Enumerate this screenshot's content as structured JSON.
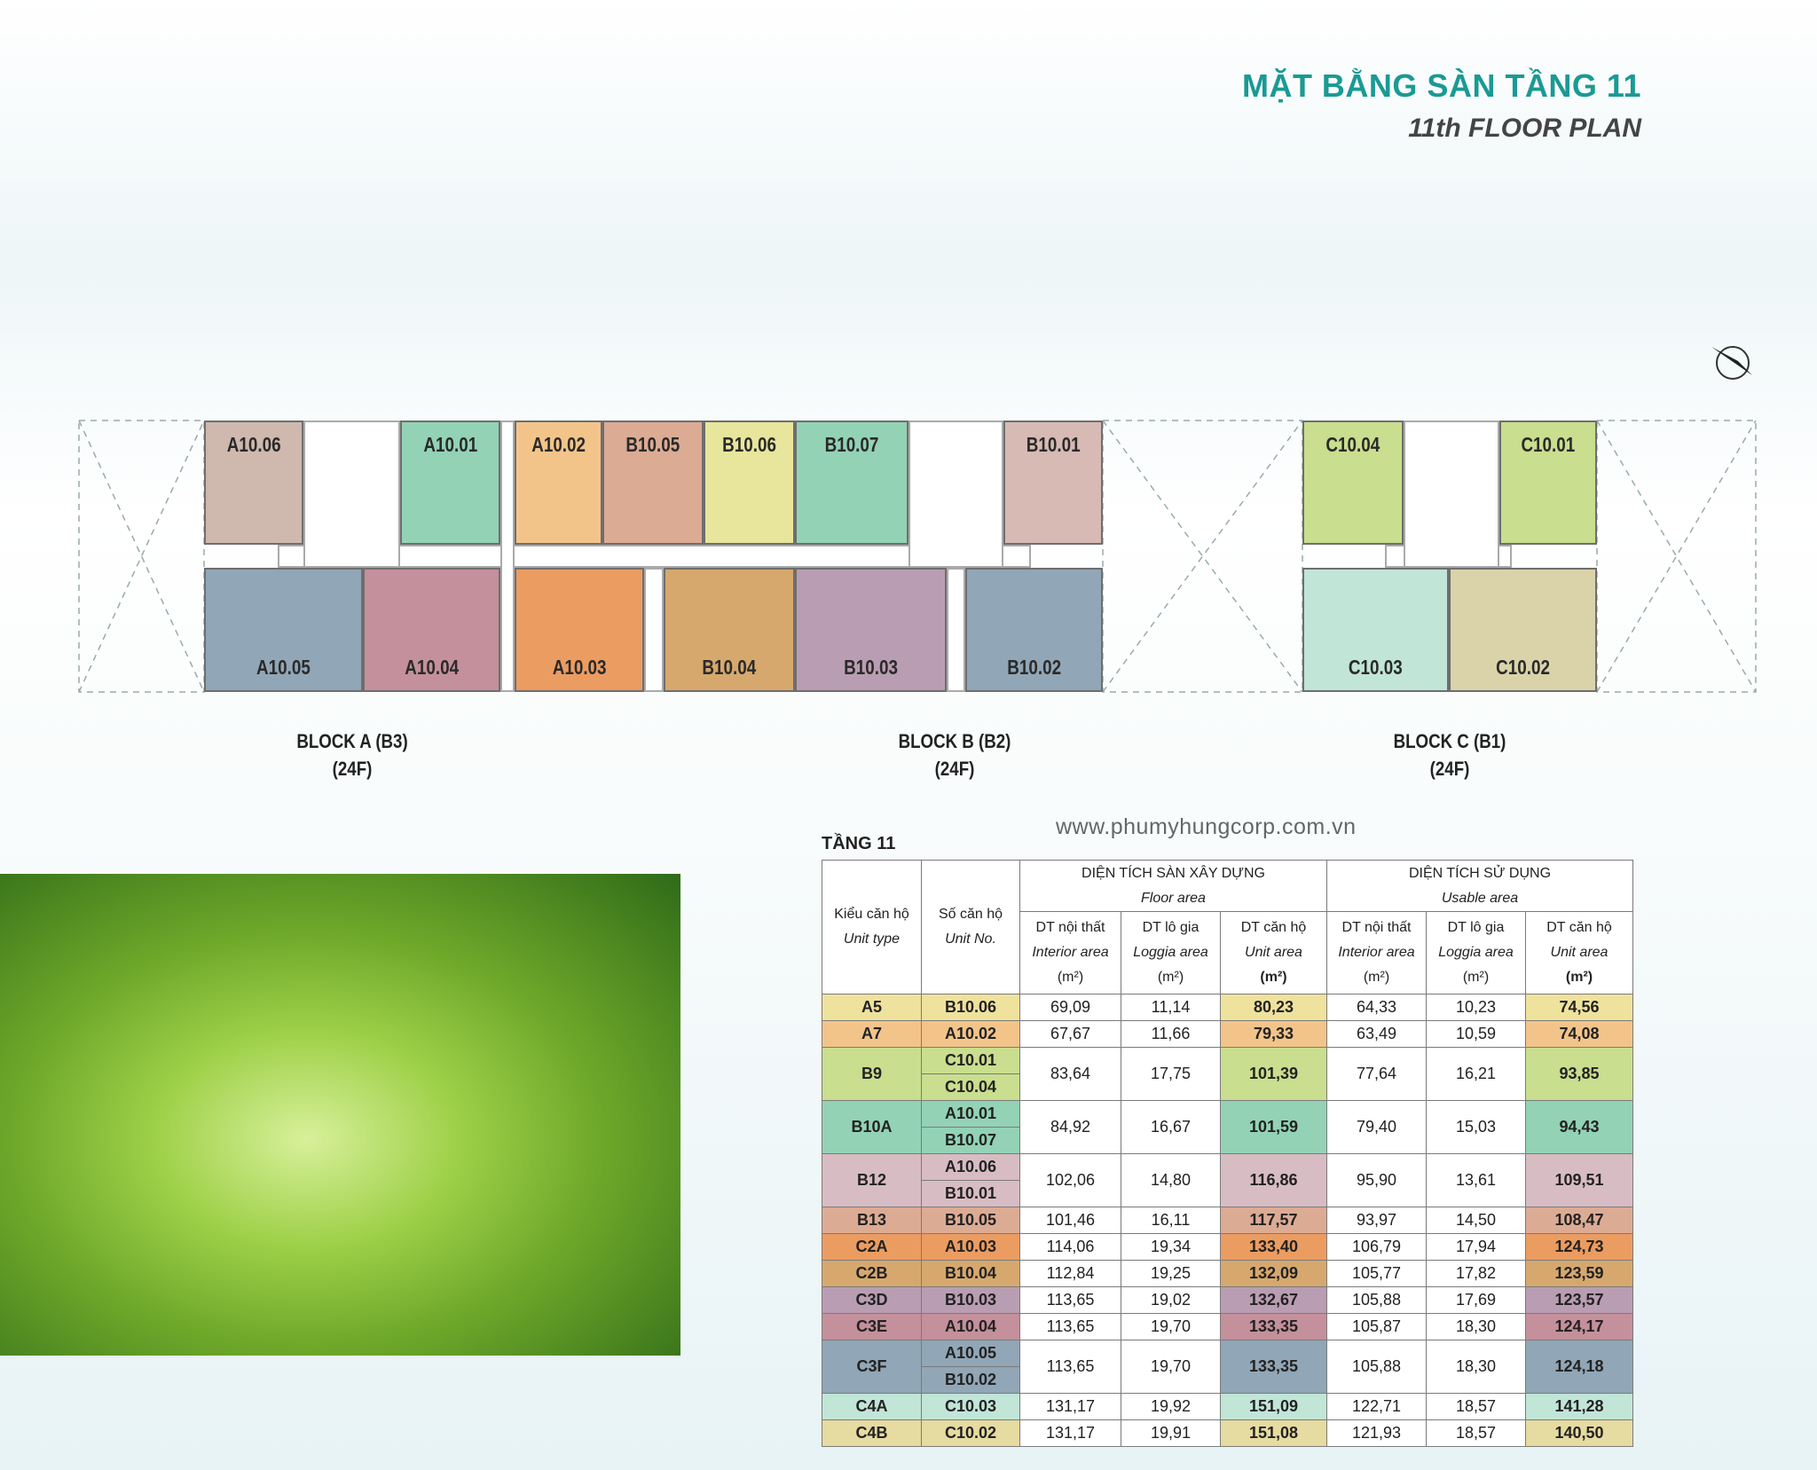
{
  "header": {
    "title": "MẶT BẰNG SÀN TẦNG 11",
    "subtitle": "11th FLOOR PLAN"
  },
  "plan": {
    "units": [
      {
        "label": "A10.06",
        "color": "#cfb8ae"
      },
      {
        "label": "A10.01",
        "color": "#93d2b5"
      },
      {
        "label": "A10.02",
        "color": "#f3c48a"
      },
      {
        "label": "B10.05",
        "color": "#dcab94"
      },
      {
        "label": "B10.06",
        "color": "#e8e59c"
      },
      {
        "label": "B10.07",
        "color": "#93d2b5"
      },
      {
        "label": "B10.01",
        "color": "#d6bab3"
      },
      {
        "label": "A10.05",
        "color": "#91a6b6"
      },
      {
        "label": "A10.04",
        "color": "#c4909b"
      },
      {
        "label": "A10.03",
        "color": "#eb9c61"
      },
      {
        "label": "B10.04",
        "color": "#d6a86d"
      },
      {
        "label": "B10.03",
        "color": "#b99db2"
      },
      {
        "label": "B10.02",
        "color": "#91a6b6"
      },
      {
        "label": "C10.04",
        "color": "#c9de8e"
      },
      {
        "label": "C10.01",
        "color": "#c9de8e"
      },
      {
        "label": "C10.03",
        "color": "#c1e5d7"
      },
      {
        "label": "C10.02",
        "color": "#dad3aa"
      }
    ],
    "blocks": [
      {
        "name": "BLOCK A (B3)",
        "floors": "(24F)"
      },
      {
        "name": "BLOCK B (B2)",
        "floors": "(24F)"
      },
      {
        "name": "BLOCK C (B1)",
        "floors": "(24F)"
      }
    ]
  },
  "website": "www.phumyhungcorp.com.vn",
  "table": {
    "title": "TẦNG 11",
    "headers": {
      "type": [
        "Kiểu căn hộ",
        "Unit type"
      ],
      "unit": [
        "Số căn hộ",
        "Unit No."
      ],
      "groups": [
        {
          "title": "DIỆN TÍCH SÀN XÂY DỰNG",
          "subtitle": "Floor area"
        },
        {
          "title": "DIỆN TÍCH SỬ DỤNG",
          "subtitle": "Usable area"
        }
      ],
      "columns": [
        [
          "DT nội thất",
          "Interior area",
          "(m²)"
        ],
        [
          "DT lô gia",
          "Loggia area",
          "(m²)"
        ],
        [
          "DT căn hộ",
          "Unit area",
          "(m²)"
        ]
      ]
    },
    "rows": [
      {
        "type": "A5",
        "units": [
          "B10.06"
        ],
        "floor": [
          "69,09",
          "11,14",
          "80,23"
        ],
        "usable": [
          "64,33",
          "10,23",
          "74,56"
        ],
        "color": "#efe29c"
      },
      {
        "type": "A7",
        "units": [
          "A10.02"
        ],
        "floor": [
          "67,67",
          "11,66",
          "79,33"
        ],
        "usable": [
          "63,49",
          "10,59",
          "74,08"
        ],
        "color": "#f3c48a"
      },
      {
        "type": "B9",
        "units": [
          "C10.01",
          "C10.04"
        ],
        "floor": [
          "83,64",
          "17,75",
          "101,39"
        ],
        "usable": [
          "77,64",
          "16,21",
          "93,85"
        ],
        "color": "#c9de8e"
      },
      {
        "type": "B10A",
        "units": [
          "A10.01",
          "B10.07"
        ],
        "floor": [
          "84,92",
          "16,67",
          "101,59"
        ],
        "usable": [
          "79,40",
          "15,03",
          "94,43"
        ],
        "color": "#93d2b5"
      },
      {
        "type": "B12",
        "units": [
          "A10.06",
          "B10.01"
        ],
        "floor": [
          "102,06",
          "14,80",
          "116,86"
        ],
        "usable": [
          "95,90",
          "13,61",
          "109,51"
        ],
        "color": "#d8bcc3"
      },
      {
        "type": "B13",
        "units": [
          "B10.05"
        ],
        "floor": [
          "101,46",
          "16,11",
          "117,57"
        ],
        "usable": [
          "93,97",
          "14,50",
          "108,47"
        ],
        "color": "#dcab94"
      },
      {
        "type": "C2A",
        "units": [
          "A10.03"
        ],
        "floor": [
          "114,06",
          "19,34",
          "133,40"
        ],
        "usable": [
          "106,79",
          "17,94",
          "124,73"
        ],
        "color": "#eb9c61"
      },
      {
        "type": "C2B",
        "units": [
          "B10.04"
        ],
        "floor": [
          "112,84",
          "19,25",
          "132,09"
        ],
        "usable": [
          "105,77",
          "17,82",
          "123,59"
        ],
        "color": "#d6a86d"
      },
      {
        "type": "C3D",
        "units": [
          "B10.03"
        ],
        "floor": [
          "113,65",
          "19,02",
          "132,67"
        ],
        "usable": [
          "105,88",
          "17,69",
          "123,57"
        ],
        "color": "#b99db2"
      },
      {
        "type": "C3E",
        "units": [
          "A10.04"
        ],
        "floor": [
          "113,65",
          "19,70",
          "133,35"
        ],
        "usable": [
          "105,87",
          "18,30",
          "124,17"
        ],
        "color": "#c4909b"
      },
      {
        "type": "C3F",
        "units": [
          "A10.05",
          "B10.02"
        ],
        "floor": [
          "113,65",
          "19,70",
          "133,35"
        ],
        "usable": [
          "105,88",
          "18,30",
          "124,18"
        ],
        "color": "#91a6b6"
      },
      {
        "type": "C4A",
        "units": [
          "C10.03"
        ],
        "floor": [
          "131,17",
          "19,92",
          "151,09"
        ],
        "usable": [
          "122,71",
          "18,57",
          "141,28"
        ],
        "color": "#c1e5d7"
      },
      {
        "type": "C4B",
        "units": [
          "C10.02"
        ],
        "floor": [
          "131,17",
          "19,91",
          "151,08"
        ],
        "usable": [
          "121,93",
          "18,57",
          "140,50"
        ],
        "color": "#e6dba0"
      }
    ]
  }
}
